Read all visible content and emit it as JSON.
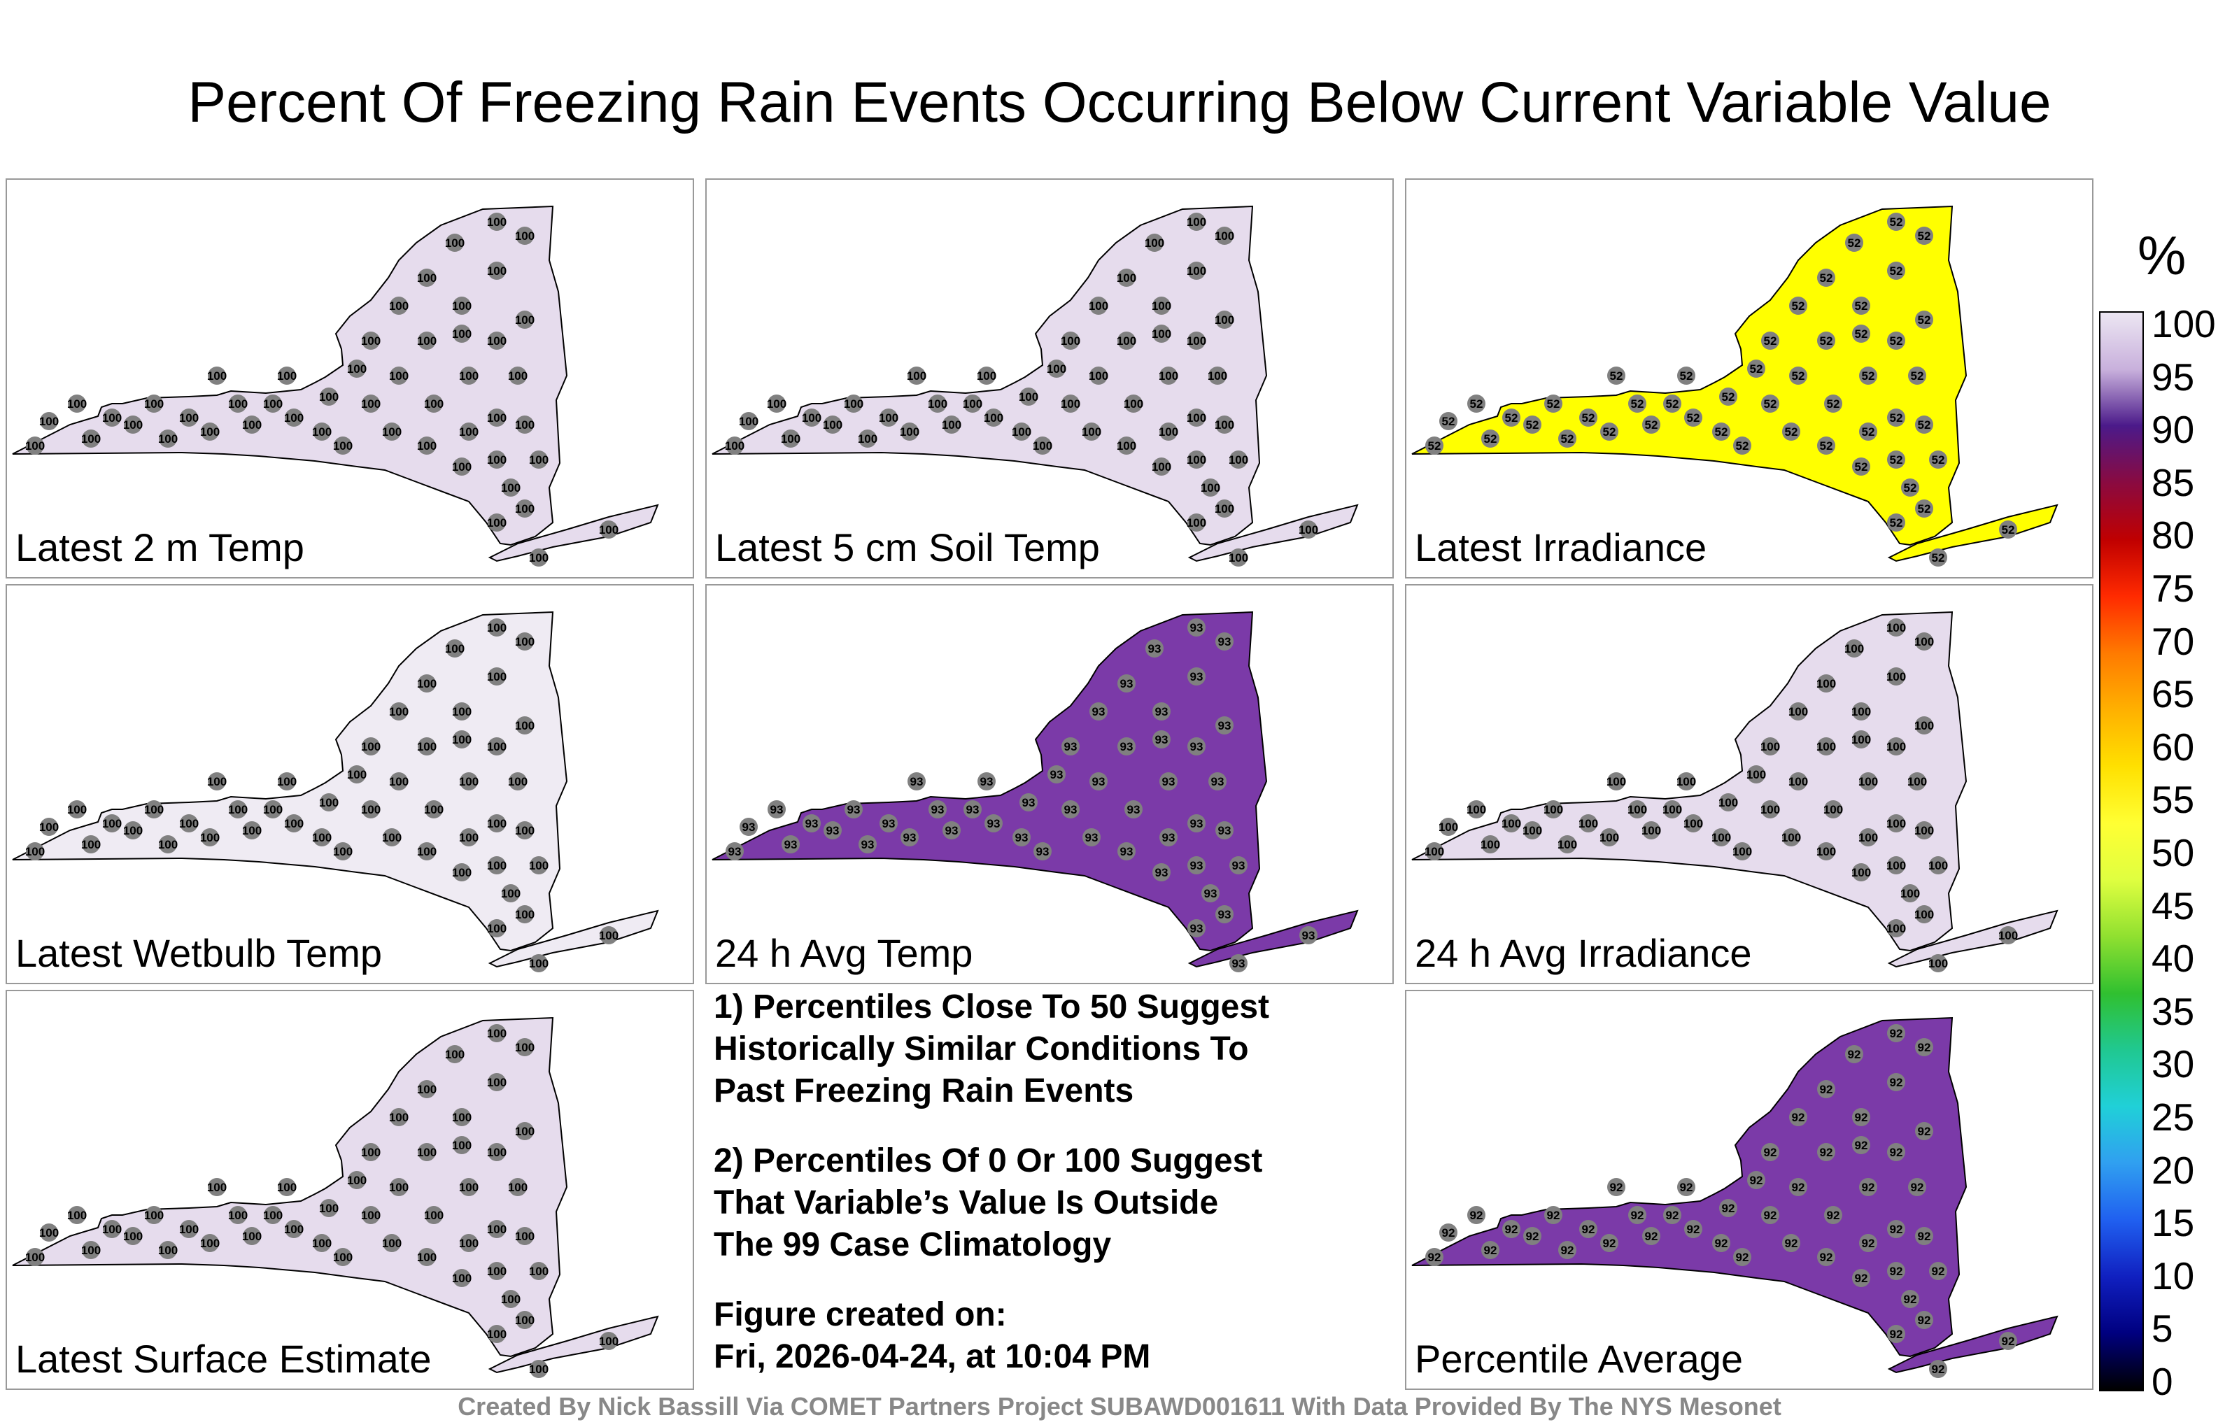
{
  "title": "Percent Of Freezing Rain Events Occurring Below Current Variable Value",
  "panels": [
    {
      "label": "Latest 2 m Temp",
      "value": "100",
      "fill": "#e6dced"
    },
    {
      "label": "Latest 5 cm Soil Temp",
      "value": "100",
      "fill": "#e6dced"
    },
    {
      "label": "Latest Irradiance",
      "value": "52",
      "fill": "#ffff00"
    },
    {
      "label": "Latest Wetbulb Temp",
      "value": "100",
      "fill": "#efebf3"
    },
    {
      "label": "24 h Avg Temp",
      "value": "93",
      "fill": "#7b3aa8"
    },
    {
      "label": "24 h Avg Irradiance",
      "value": "100",
      "fill": "#e6dced"
    },
    {
      "label": "Latest Surface Estimate",
      "value": "100",
      "fill": "#e6dced"
    },
    {
      "label": "Percentile Average",
      "value": "92",
      "fill": "#7b3aa8"
    }
  ],
  "notes": {
    "line1": "1) Percentiles Close To 50 Suggest",
    "line2": "Historically Similar Conditions To",
    "line3": "Past Freezing Rain Events",
    "line4": "2) Percentiles Of 0 Or 100 Suggest",
    "line5": "That Variable’s Value Is Outside",
    "line6": "The 99 Case Climatology",
    "created_label": "Figure created on:",
    "created_value": "Fri, 2026-04-24, at 10:04 PM"
  },
  "legend": {
    "unit": "%",
    "ticks": [
      "100",
      "95",
      "90",
      "85",
      "80",
      "75",
      "70",
      "65",
      "60",
      "55",
      "50",
      "45",
      "40",
      "35",
      "30",
      "25",
      "20",
      "15",
      "10",
      "5",
      "0"
    ],
    "colors": [
      "#ece6f2",
      "#c8b0dc",
      "#4b1a8a",
      "#8a0a40",
      "#c00000",
      "#ff2a00",
      "#ff7a00",
      "#ffb000",
      "#ffe000",
      "#ffff33",
      "#e0ff40",
      "#90e030",
      "#30c030",
      "#20c890",
      "#20d0d8",
      "#30a0f0",
      "#2060f0",
      "#1020c0",
      "#000080",
      "#000000"
    ]
  },
  "footer": "Created By Nick Bassill Via COMET Partners Project SUBAWD001611 With Data Provided By The NYS Mesonet"
}
